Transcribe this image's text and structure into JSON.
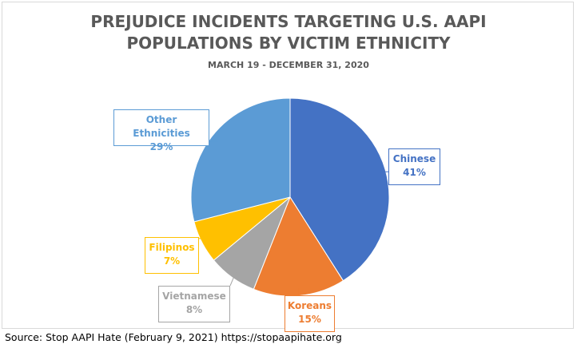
{
  "chart_data": {
    "type": "pie",
    "title": [
      "PREJUDICE INCIDENTS TARGETING U.S. AAPI",
      "POPULATIONS BY VICTIM ETHNICITY"
    ],
    "subtitle": "MARCH 19 - DECEMBER 31, 2020",
    "legend": "none",
    "slices": [
      {
        "label": "Chinese",
        "value": 41,
        "value_label": "41%",
        "color": "#4472c4"
      },
      {
        "label": "Koreans",
        "value": 15,
        "value_label": "15%",
        "color": "#ed7d31"
      },
      {
        "label": "Vietnamese",
        "value": 8,
        "value_label": "8%",
        "color": "#a5a5a5"
      },
      {
        "label": "Filipinos",
        "value": 7,
        "value_label": "7%",
        "color": "#ffc000"
      },
      {
        "label": "Other Ethnicities",
        "value": 29,
        "value_label": "29%",
        "color": "#5b9bd5"
      }
    ]
  },
  "source": "Source: Stop AAPI Hate (February 9, 2021) https://stopaapihate.org"
}
